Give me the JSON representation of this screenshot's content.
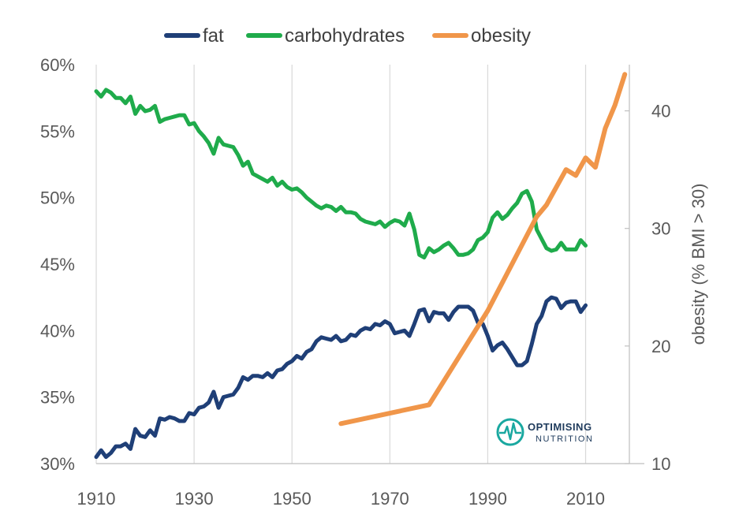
{
  "chart_data": {
    "type": "line",
    "title": "",
    "xlabel": "",
    "ylabel": "",
    "y2label": "obesity (% BMI > 30)",
    "xlim": [
      1910,
      2022
    ],
    "ylim": [
      0.3,
      0.6
    ],
    "y2lim": [
      10,
      45
    ],
    "x_ticks": [
      "1910",
      "1930",
      "1950",
      "1970",
      "1990",
      "2010"
    ],
    "y_ticks": [
      "30%",
      "35%",
      "40%",
      "45%",
      "50%",
      "55%",
      "60%"
    ],
    "y2_ticks": [
      "10",
      "20",
      "30",
      "40"
    ],
    "legend": [
      "fat",
      "carbohydrates",
      "obesity"
    ],
    "colors": {
      "fat": "#1f3f77",
      "carbohydrates": "#1fab4b",
      "obesity": "#f0964a",
      "axis": "#bfbfbf"
    },
    "series": [
      {
        "name": "fat",
        "axis": "left",
        "x": [
          1910,
          1911,
          1912,
          1913,
          1914,
          1915,
          1916,
          1917,
          1918,
          1919,
          1920,
          1921,
          1922,
          1923,
          1924,
          1925,
          1926,
          1927,
          1928,
          1929,
          1930,
          1931,
          1932,
          1933,
          1934,
          1935,
          1936,
          1937,
          1938,
          1939,
          1940,
          1941,
          1942,
          1943,
          1944,
          1945,
          1946,
          1947,
          1948,
          1949,
          1950,
          1951,
          1952,
          1953,
          1954,
          1955,
          1956,
          1957,
          1958,
          1959,
          1960,
          1961,
          1962,
          1963,
          1964,
          1965,
          1966,
          1967,
          1968,
          1969,
          1970,
          1971,
          1972,
          1973,
          1974,
          1975,
          1976,
          1977,
          1978,
          1979,
          1980,
          1981,
          1982,
          1983,
          1984,
          1985,
          1986,
          1987,
          1988,
          1989,
          1990,
          1991,
          1992,
          1993,
          1994,
          1995,
          1996,
          1997,
          1998,
          1999,
          2000,
          2001,
          2002,
          2003,
          2004,
          2005,
          2006,
          2007,
          2008,
          2009,
          2010
        ],
        "values": [
          0.305,
          0.31,
          0.305,
          0.308,
          0.313,
          0.313,
          0.315,
          0.311,
          0.326,
          0.321,
          0.32,
          0.325,
          0.321,
          0.334,
          0.333,
          0.335,
          0.334,
          0.332,
          0.332,
          0.338,
          0.337,
          0.342,
          0.343,
          0.346,
          0.354,
          0.342,
          0.35,
          0.351,
          0.352,
          0.357,
          0.365,
          0.363,
          0.366,
          0.366,
          0.365,
          0.368,
          0.365,
          0.37,
          0.371,
          0.375,
          0.377,
          0.381,
          0.379,
          0.384,
          0.386,
          0.392,
          0.395,
          0.394,
          0.393,
          0.396,
          0.392,
          0.393,
          0.397,
          0.396,
          0.4,
          0.402,
          0.401,
          0.405,
          0.404,
          0.407,
          0.405,
          0.398,
          0.399,
          0.4,
          0.396,
          0.405,
          0.415,
          0.416,
          0.407,
          0.414,
          0.413,
          0.413,
          0.408,
          0.414,
          0.418,
          0.418,
          0.418,
          0.415,
          0.406,
          0.405,
          0.396,
          0.385,
          0.389,
          0.391,
          0.386,
          0.38,
          0.374,
          0.374,
          0.377,
          0.39,
          0.405,
          0.411,
          0.422,
          0.425,
          0.424,
          0.417,
          0.421,
          0.422,
          0.422,
          0.414,
          0.419
        ]
      },
      {
        "name": "carbohydrates",
        "axis": "left",
        "x": [
          1910,
          1911,
          1912,
          1913,
          1914,
          1915,
          1916,
          1917,
          1918,
          1919,
          1920,
          1921,
          1922,
          1923,
          1924,
          1925,
          1926,
          1927,
          1928,
          1929,
          1930,
          1931,
          1932,
          1933,
          1934,
          1935,
          1936,
          1937,
          1938,
          1939,
          1940,
          1941,
          1942,
          1943,
          1944,
          1945,
          1946,
          1947,
          1948,
          1949,
          1950,
          1951,
          1952,
          1953,
          1954,
          1955,
          1956,
          1957,
          1958,
          1959,
          1960,
          1961,
          1962,
          1963,
          1964,
          1965,
          1966,
          1967,
          1968,
          1969,
          1970,
          1971,
          1972,
          1973,
          1974,
          1975,
          1976,
          1977,
          1978,
          1979,
          1980,
          1981,
          1982,
          1983,
          1984,
          1985,
          1986,
          1987,
          1988,
          1989,
          1990,
          1991,
          1992,
          1993,
          1994,
          1995,
          1996,
          1997,
          1998,
          1999,
          2000,
          2001,
          2002,
          2003,
          2004,
          2005,
          2006,
          2007,
          2008,
          2009,
          2010
        ],
        "values": [
          0.58,
          0.576,
          0.581,
          0.579,
          0.575,
          0.575,
          0.571,
          0.576,
          0.563,
          0.569,
          0.565,
          0.566,
          0.569,
          0.557,
          0.559,
          0.56,
          0.561,
          0.562,
          0.562,
          0.555,
          0.556,
          0.55,
          0.546,
          0.541,
          0.533,
          0.545,
          0.54,
          0.539,
          0.538,
          0.532,
          0.524,
          0.527,
          0.518,
          0.516,
          0.514,
          0.512,
          0.515,
          0.509,
          0.512,
          0.508,
          0.506,
          0.507,
          0.504,
          0.5,
          0.497,
          0.494,
          0.492,
          0.494,
          0.493,
          0.49,
          0.493,
          0.489,
          0.489,
          0.488,
          0.484,
          0.482,
          0.481,
          0.48,
          0.482,
          0.478,
          0.481,
          0.483,
          0.482,
          0.479,
          0.488,
          0.476,
          0.457,
          0.455,
          0.462,
          0.459,
          0.461,
          0.464,
          0.466,
          0.462,
          0.457,
          0.457,
          0.458,
          0.461,
          0.468,
          0.47,
          0.474,
          0.485,
          0.489,
          0.484,
          0.487,
          0.492,
          0.496,
          0.503,
          0.505,
          0.497,
          0.476,
          0.469,
          0.462,
          0.46,
          0.461,
          0.466,
          0.461,
          0.461,
          0.461,
          0.468,
          0.464
        ]
      },
      {
        "name": "obesity",
        "axis": "right",
        "x": [
          1960,
          1978,
          1990,
          2000,
          2002,
          2006,
          2008,
          2010,
          2012,
          2014,
          2016,
          2018
        ],
        "values": [
          13.4,
          15,
          23,
          31,
          32,
          35,
          34.5,
          36,
          35.2,
          38.5,
          40.5,
          43.1
        ]
      }
    ]
  },
  "watermark": {
    "line1": "OPTIMISING",
    "line2": "NUTRITION"
  }
}
